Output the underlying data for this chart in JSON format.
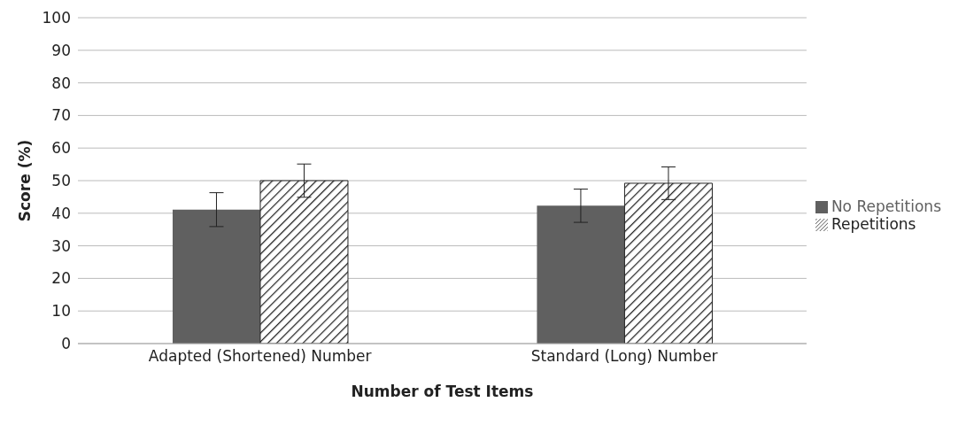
{
  "chart_data": {
    "type": "bar",
    "xlabel": "Number of Test Items",
    "ylabel": "Score (%)",
    "categories": [
      "Adapted (Shortened) Number",
      "Standard (Long) Number"
    ],
    "series": [
      {
        "name": "No Repetitions",
        "color": "#606060",
        "values": [
          41.1,
          42.3
        ],
        "errors": [
          5.2,
          5.1
        ]
      },
      {
        "name": "Repetitions",
        "color": "#222222",
        "values": [
          50,
          49.2
        ],
        "errors": [
          5.1,
          5
        ]
      }
    ],
    "ylim": [
      0,
      100
    ],
    "yticks": [
      0,
      10,
      20,
      30,
      40,
      50,
      60,
      70,
      80,
      90,
      100
    ],
    "grid": "y",
    "legend": "right"
  }
}
